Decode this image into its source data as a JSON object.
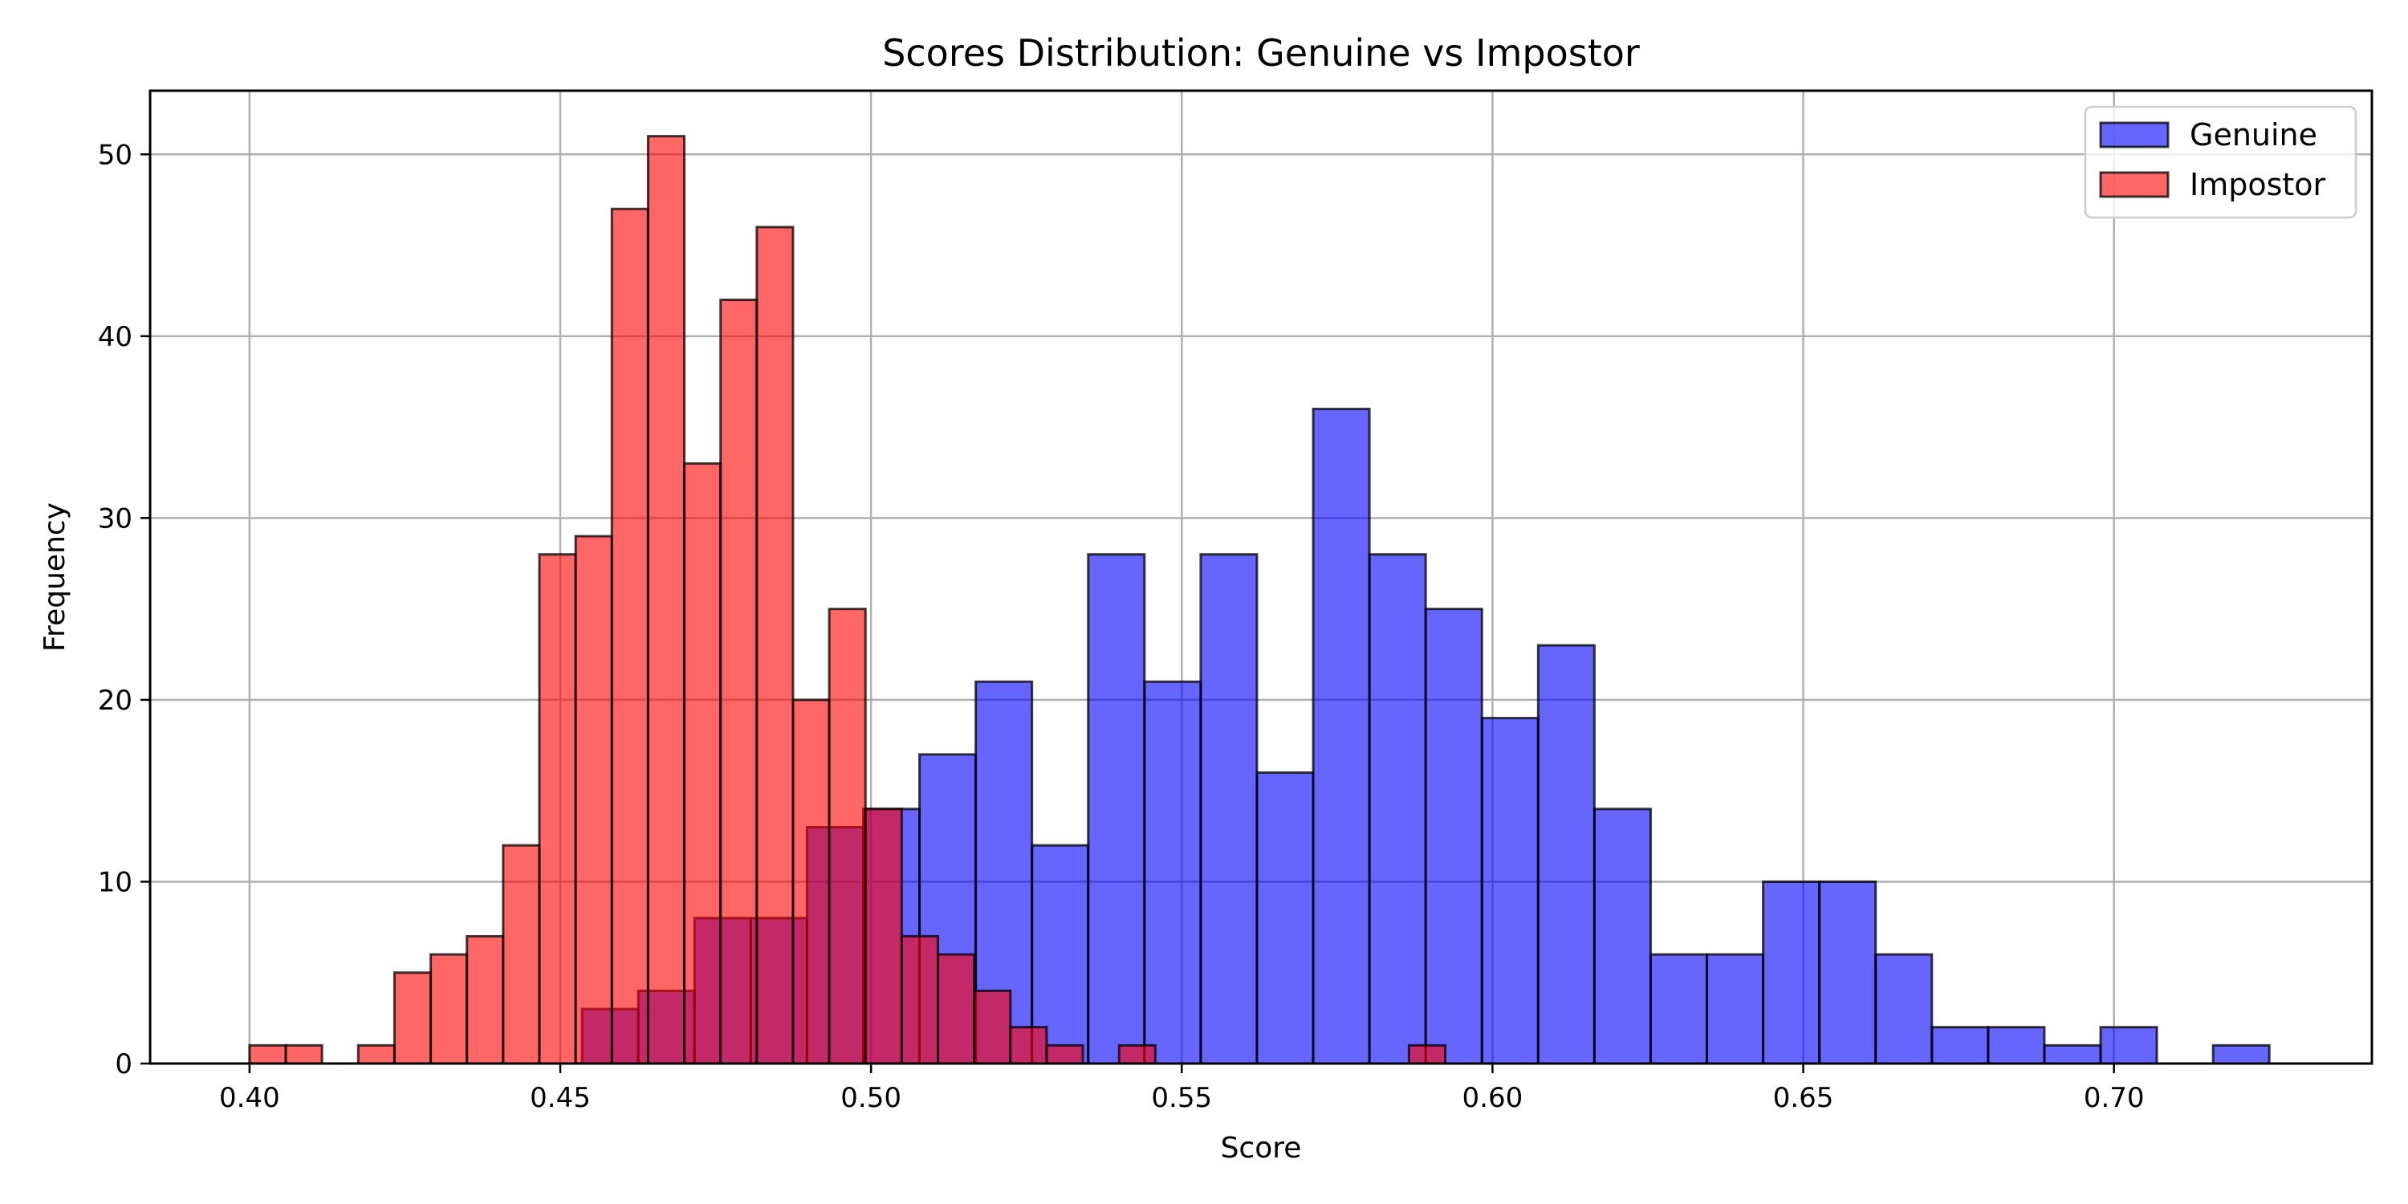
{
  "chart_data": {
    "type": "bar",
    "subtype": "overlapping-histogram",
    "title": "Scores Distribution: Genuine vs Impostor",
    "xlabel": "Score",
    "ylabel": "Frequency",
    "xlim": [
      0.384,
      0.7415
    ],
    "ylim": [
      0,
      53.5
    ],
    "xticks": [
      "0.40",
      "0.45",
      "0.50",
      "0.55",
      "0.60",
      "0.65",
      "0.70"
    ],
    "xtick_values": [
      0.4,
      0.45,
      0.5,
      0.55,
      0.6,
      0.65,
      0.7
    ],
    "yticks": [
      "0",
      "10",
      "20",
      "30",
      "40",
      "50"
    ],
    "ytick_values": [
      0,
      10,
      20,
      30,
      40,
      50
    ],
    "grid": true,
    "legend_position": "top-right",
    "series": [
      {
        "name": "Genuine",
        "color": "#0000ff",
        "opacity": 0.6,
        "bin_start": 0.4535,
        "bin_width": 0.00905,
        "values": [
          3,
          4,
          8,
          8,
          13,
          14,
          17,
          21,
          12,
          28,
          21,
          28,
          16,
          36,
          28,
          25,
          19,
          23,
          14,
          6,
          6,
          10,
          10,
          6,
          2,
          2,
          1,
          2,
          0,
          1
        ]
      },
      {
        "name": "Impostor",
        "color": "#ff0000",
        "opacity": 0.6,
        "bin_start": 0.4,
        "bin_width": 0.00583,
        "values": [
          1,
          1,
          0,
          1,
          5,
          6,
          7,
          12,
          28,
          29,
          47,
          51,
          33,
          42,
          46,
          20,
          25,
          14,
          7,
          6,
          4,
          2,
          1,
          0,
          1,
          0,
          0,
          0,
          0,
          0,
          0,
          0,
          1
        ]
      }
    ]
  }
}
